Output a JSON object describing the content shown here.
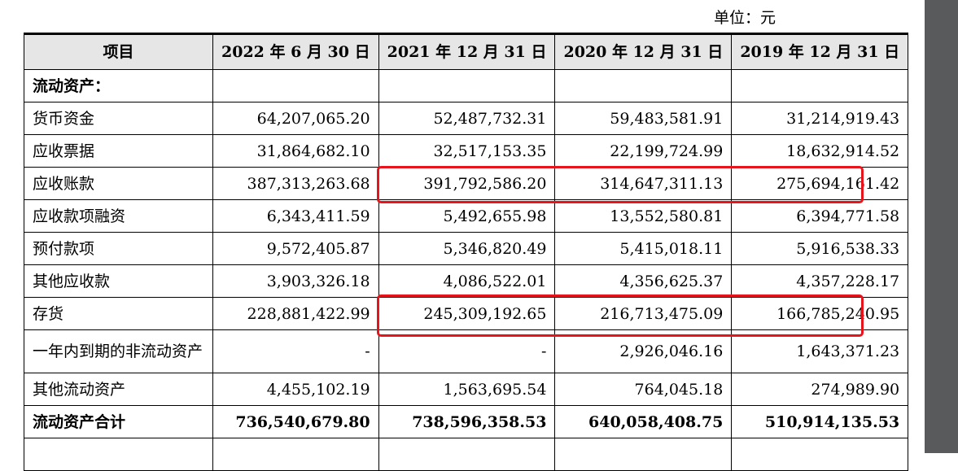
{
  "unit": "单位：元",
  "table": {
    "headers": [
      "项目",
      "2022 年 6 月 30 日",
      "2021 年 12 月 31 日",
      "2020 年 12 月 31 日",
      "2019 年 12 月 31 日"
    ],
    "rows": [
      {
        "label": "流动资产：",
        "values": [
          "",
          "",
          "",
          ""
        ],
        "bold": true
      },
      {
        "label": "货币资金",
        "values": [
          "64,207,065.20",
          "52,487,732.31",
          "59,483,581.91",
          "31,214,919.43"
        ]
      },
      {
        "label": "应收票据",
        "values": [
          "31,864,682.10",
          "32,517,153.35",
          "22,199,724.99",
          "18,632,914.52"
        ]
      },
      {
        "label": "应收账款",
        "values": [
          "387,313,263.68",
          "391,792,586.20",
          "314,647,311.13",
          "275,694,161.42"
        ]
      },
      {
        "label": "应收款项融资",
        "values": [
          "6,343,411.59",
          "5,492,655.98",
          "13,552,580.81",
          "6,394,771.58"
        ]
      },
      {
        "label": "预付款项",
        "values": [
          "9,572,405.87",
          "5,346,820.49",
          "5,415,018.11",
          "5,916,538.33"
        ]
      },
      {
        "label": "其他应收款",
        "values": [
          "3,903,326.18",
          "4,086,522.01",
          "4,356,625.37",
          "4,357,228.17"
        ]
      },
      {
        "label": "存货",
        "values": [
          "228,881,422.99",
          "245,309,192.65",
          "216,713,475.09",
          "166,785,240.95"
        ]
      },
      {
        "label": "一年内到期的非流动资产",
        "values": [
          "-",
          "-",
          "2,926,046.16",
          "1,643,371.23"
        ]
      },
      {
        "label": "其他流动资产",
        "values": [
          "4,455,102.19",
          "1,563,695.54",
          "764,045.18",
          "274,989.90"
        ]
      },
      {
        "label": "流动资产合计",
        "values": [
          "736,540,679.80",
          "738,596,358.53",
          "640,058,408.75",
          "510,914,135.53"
        ],
        "bold": true
      }
    ]
  },
  "highlight_color": "#e8141b"
}
